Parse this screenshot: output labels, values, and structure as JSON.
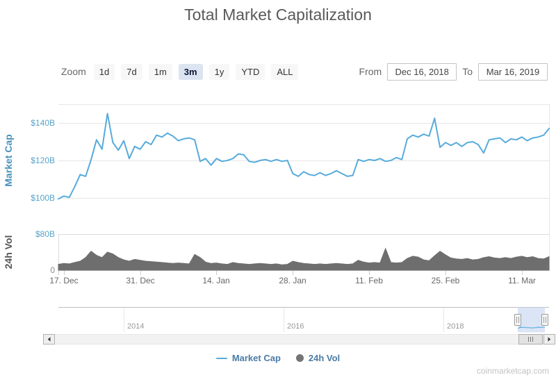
{
  "title": "Total Market Capitalization",
  "toolbar": {
    "zoom_label": "Zoom",
    "zoom_buttons": [
      {
        "label": "1d",
        "selected": false
      },
      {
        "label": "7d",
        "selected": false
      },
      {
        "label": "1m",
        "selected": false
      },
      {
        "label": "3m",
        "selected": true
      },
      {
        "label": "1y",
        "selected": false
      },
      {
        "label": "YTD",
        "selected": false
      },
      {
        "label": "ALL",
        "selected": false
      }
    ],
    "from_label": "From",
    "from_value": "Dec 16, 2018",
    "to_label": "To",
    "to_value": "Mar 16, 2019"
  },
  "chart_data": {
    "type": "line",
    "title": "Total Market Capitalization",
    "x_start": "Dec 16, 2018",
    "x_end": "Mar 16, 2019",
    "x_interval": "1 day",
    "x_tick_labels": [
      "17. Dec",
      "31. Dec",
      "14. Jan",
      "28. Jan",
      "11. Feb",
      "25. Feb",
      "11. Mar"
    ],
    "grid": true,
    "legend_position": "bottom",
    "series": [
      {
        "name": "Market Cap",
        "type": "line",
        "unit": "USD billions",
        "color": "#56ABDB",
        "ylim": [
          95,
          150
        ],
        "y_ticks": [
          "$100B",
          "$120B",
          "$140B"
        ],
        "values": [
          99.5,
          101,
          100.3,
          106,
          112.5,
          111.5,
          120.5,
          131,
          126,
          145,
          129.5,
          125.5,
          130.5,
          121,
          127.5,
          126,
          130,
          128.5,
          133.5,
          132.5,
          134.5,
          133,
          130.5,
          131.5,
          132,
          131,
          119.5,
          121,
          117.5,
          121,
          119.5,
          120,
          121,
          123.5,
          123,
          119.5,
          119,
          120,
          120.5,
          119.5,
          120.5,
          119.5,
          120,
          113,
          111.5,
          114,
          112.5,
          112,
          113.5,
          112,
          113,
          114.5,
          113,
          111.5,
          112,
          120.5,
          119.5,
          120.5,
          120,
          121,
          119.5,
          120,
          121.5,
          120.5,
          131.5,
          133.5,
          132.5,
          134,
          133,
          142.5,
          127,
          129.5,
          128,
          129.5,
          127.5,
          129.5,
          130,
          128.5,
          124,
          131,
          131.5,
          132,
          129.5,
          131.5,
          131,
          132.5,
          130.5,
          132,
          132.5,
          133.5,
          137
        ]
      },
      {
        "name": "24h Vol",
        "type": "area",
        "unit": "USD billions",
        "color": "#6E6E6E",
        "ylim": [
          0,
          80
        ],
        "y_ticks": [
          "0",
          "$80B"
        ],
        "values": [
          13,
          15,
          14,
          17,
          20,
          28,
          42,
          33,
          28,
          40,
          36,
          28,
          23,
          20,
          24,
          22,
          20,
          19,
          18,
          17,
          16,
          15,
          16,
          15,
          14,
          35,
          28,
          18,
          15,
          16,
          14,
          13,
          17,
          15,
          14,
          13,
          14,
          15,
          14,
          13,
          14,
          12,
          13,
          20,
          17,
          15,
          14,
          13,
          14,
          13,
          14,
          15,
          14,
          13,
          14,
          22,
          18,
          16,
          17,
          16,
          48,
          17,
          16,
          17,
          26,
          31,
          29,
          23,
          21,
          32,
          42,
          34,
          27,
          25,
          24,
          26,
          23,
          24,
          28,
          30,
          27,
          26,
          28,
          26,
          29,
          31,
          28,
          30,
          26,
          25,
          30
        ]
      }
    ]
  },
  "navigator": {
    "year_labels": [
      "2014",
      "2016",
      "2018"
    ],
    "selection": {
      "from": "Dec 16, 2018",
      "to": "Mar 16, 2019"
    }
  },
  "legend": {
    "items": [
      {
        "label": "Market Cap",
        "marker": "line"
      },
      {
        "label": "24h Vol",
        "marker": "circle"
      }
    ]
  },
  "watermark": "coinmarketcap.com",
  "colors": {
    "market_cap_line": "#56ABDB",
    "volume_fill": "#6E6E6E",
    "axis_label_blue": "#55A3C9",
    "axis_label_gray": "#8A8A8A",
    "market_cap_axis_title": "#4892BE",
    "volume_axis_title": "#555555",
    "legend_text": "#4A7BA6",
    "legend_volume_marker": "#757575",
    "selected_zoom_bg": "#DCE4F2",
    "navigator_selection": "#CFDCF1",
    "title_color": "#595959"
  }
}
